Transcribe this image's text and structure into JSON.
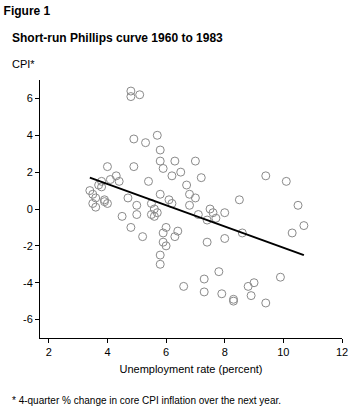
{
  "chart_data": {
    "type": "scatter",
    "title": "Figure 1",
    "subtitle": "Short-run Phillips curve 1960 to 1983",
    "ylabel": "CPI*",
    "xlabel": "Unemployment rate (percent)",
    "annotations": [
      "* 4-quarter % change in core CPI inflation over the next year."
    ],
    "xlim": [
      1.7,
      12
    ],
    "xticks": [
      2,
      4,
      6,
      8,
      10,
      12
    ],
    "ylim": [
      -7,
      7
    ],
    "yticks": [
      -6,
      -4,
      -2,
      0,
      2,
      4,
      6
    ],
    "grid": false,
    "series": [
      {
        "type": "scatter",
        "marker": "circle-open",
        "color": "#8a8a8a",
        "x": [
          3.4,
          3.5,
          3.5,
          3.6,
          3.6,
          3.7,
          3.8,
          3.8,
          3.9,
          3.9,
          4.0,
          4.0,
          4.1,
          4.3,
          4.4,
          4.5,
          4.7,
          4.8,
          4.8,
          4.8,
          4.9,
          4.9,
          5.0,
          5.0,
          5.1,
          5.2,
          5.3,
          5.4,
          5.5,
          5.5,
          5.6,
          5.6,
          5.7,
          5.7,
          5.8,
          5.8,
          5.9,
          5.9,
          5.8,
          5.9,
          5.8,
          5.8,
          6.0,
          6.0,
          6.1,
          6.2,
          6.2,
          6.3,
          6.3,
          6.4,
          6.5,
          6.6,
          6.7,
          6.8,
          6.8,
          7.0,
          7.0,
          7.1,
          7.2,
          7.3,
          7.3,
          7.4,
          7.4,
          7.5,
          7.6,
          7.7,
          7.8,
          7.9,
          8.0,
          8.0,
          8.3,
          8.3,
          8.5,
          8.6,
          8.8,
          8.9,
          9.0,
          9.4,
          9.4,
          9.9,
          10.1,
          10.3,
          10.5,
          10.7
        ],
        "values": [
          1.0,
          0.8,
          0.3,
          0.6,
          0.1,
          1.3,
          1.5,
          1.2,
          0.5,
          0.4,
          2.3,
          0.3,
          1.6,
          1.8,
          1.5,
          -0.4,
          0.6,
          6.4,
          6.1,
          -1.0,
          3.8,
          2.3,
          0.2,
          -0.3,
          6.2,
          -1.5,
          3.6,
          1.5,
          -0.3,
          0.3,
          -0.4,
          0.0,
          -0.2,
          4.0,
          3.2,
          2.6,
          2.2,
          -1.3,
          0.8,
          -1.8,
          -2.5,
          -3.0,
          -1.0,
          -2.0,
          0.5,
          1.8,
          0.3,
          -1.5,
          2.6,
          -1.2,
          2.0,
          -4.2,
          1.3,
          0.8,
          0.2,
          2.6,
          0.6,
          -0.3,
          1.7,
          -3.8,
          -4.5,
          -1.8,
          -0.6,
          0.0,
          -0.2,
          -0.5,
          -3.4,
          -4.6,
          -1.6,
          -0.2,
          -4.9,
          -5.0,
          0.5,
          -1.3,
          -4.2,
          -4.7,
          -4.0,
          1.8,
          -5.1,
          -3.7,
          1.5,
          -1.3,
          0.2,
          -0.9
        ]
      },
      {
        "type": "line",
        "line_style": "solid",
        "color": "#000000",
        "x": [
          3.4,
          10.7
        ],
        "values": [
          1.7,
          -2.5
        ]
      }
    ]
  }
}
